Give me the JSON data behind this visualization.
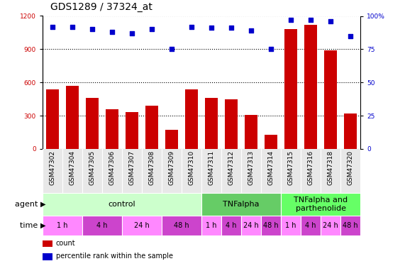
{
  "title": "GDS1289 / 37324_at",
  "samples": [
    "GSM47302",
    "GSM47304",
    "GSM47305",
    "GSM47306",
    "GSM47307",
    "GSM47308",
    "GSM47309",
    "GSM47310",
    "GSM47311",
    "GSM47312",
    "GSM47313",
    "GSM47314",
    "GSM47315",
    "GSM47316",
    "GSM47318",
    "GSM47320"
  ],
  "counts": [
    540,
    570,
    460,
    360,
    330,
    390,
    170,
    540,
    460,
    450,
    310,
    130,
    1080,
    1120,
    890,
    320
  ],
  "percentiles": [
    92,
    92,
    90,
    88,
    87,
    90,
    75,
    92,
    91,
    91,
    89,
    75,
    97,
    97,
    96,
    85
  ],
  "ylim_left": [
    0,
    1200
  ],
  "ylim_right": [
    0,
    100
  ],
  "yticks_left": [
    0,
    300,
    600,
    900,
    1200
  ],
  "yticks_right": [
    0,
    25,
    50,
    75,
    100
  ],
  "bar_color": "#cc0000",
  "dot_color": "#0000cc",
  "grid_color": "#000000",
  "bg_color": "#e8e8e8",
  "agent_groups": [
    {
      "label": "control",
      "start": 0,
      "end": 8,
      "color": "#ccffcc"
    },
    {
      "label": "TNFalpha",
      "start": 8,
      "end": 12,
      "color": "#66cc66"
    },
    {
      "label": "TNFalpha and\nparthenolide",
      "start": 12,
      "end": 16,
      "color": "#66ff66"
    }
  ],
  "time_groups": [
    {
      "label": "1 h",
      "start": 0,
      "end": 2,
      "color": "#ff88ff"
    },
    {
      "label": "4 h",
      "start": 2,
      "end": 4,
      "color": "#cc44cc"
    },
    {
      "label": "24 h",
      "start": 4,
      "end": 6,
      "color": "#ff88ff"
    },
    {
      "label": "48 h",
      "start": 6,
      "end": 8,
      "color": "#cc44cc"
    },
    {
      "label": "1 h",
      "start": 8,
      "end": 9,
      "color": "#ff88ff"
    },
    {
      "label": "4 h",
      "start": 9,
      "end": 10,
      "color": "#cc44cc"
    },
    {
      "label": "24 h",
      "start": 10,
      "end": 11,
      "color": "#ff88ff"
    },
    {
      "label": "48 h",
      "start": 11,
      "end": 12,
      "color": "#cc44cc"
    },
    {
      "label": "1 h",
      "start": 12,
      "end": 13,
      "color": "#ff88ff"
    },
    {
      "label": "4 h",
      "start": 13,
      "end": 14,
      "color": "#cc44cc"
    },
    {
      "label": "24 h",
      "start": 14,
      "end": 15,
      "color": "#ff88ff"
    },
    {
      "label": "48 h",
      "start": 15,
      "end": 16,
      "color": "#cc44cc"
    }
  ],
  "legend_items": [
    {
      "label": "count",
      "color": "#cc0000"
    },
    {
      "label": "percentile rank within the sample",
      "color": "#0000cc"
    }
  ],
  "agent_label_fontsize": 8,
  "time_label_fontsize": 7,
  "tick_label_fontsize": 6.5,
  "title_fontsize": 10
}
